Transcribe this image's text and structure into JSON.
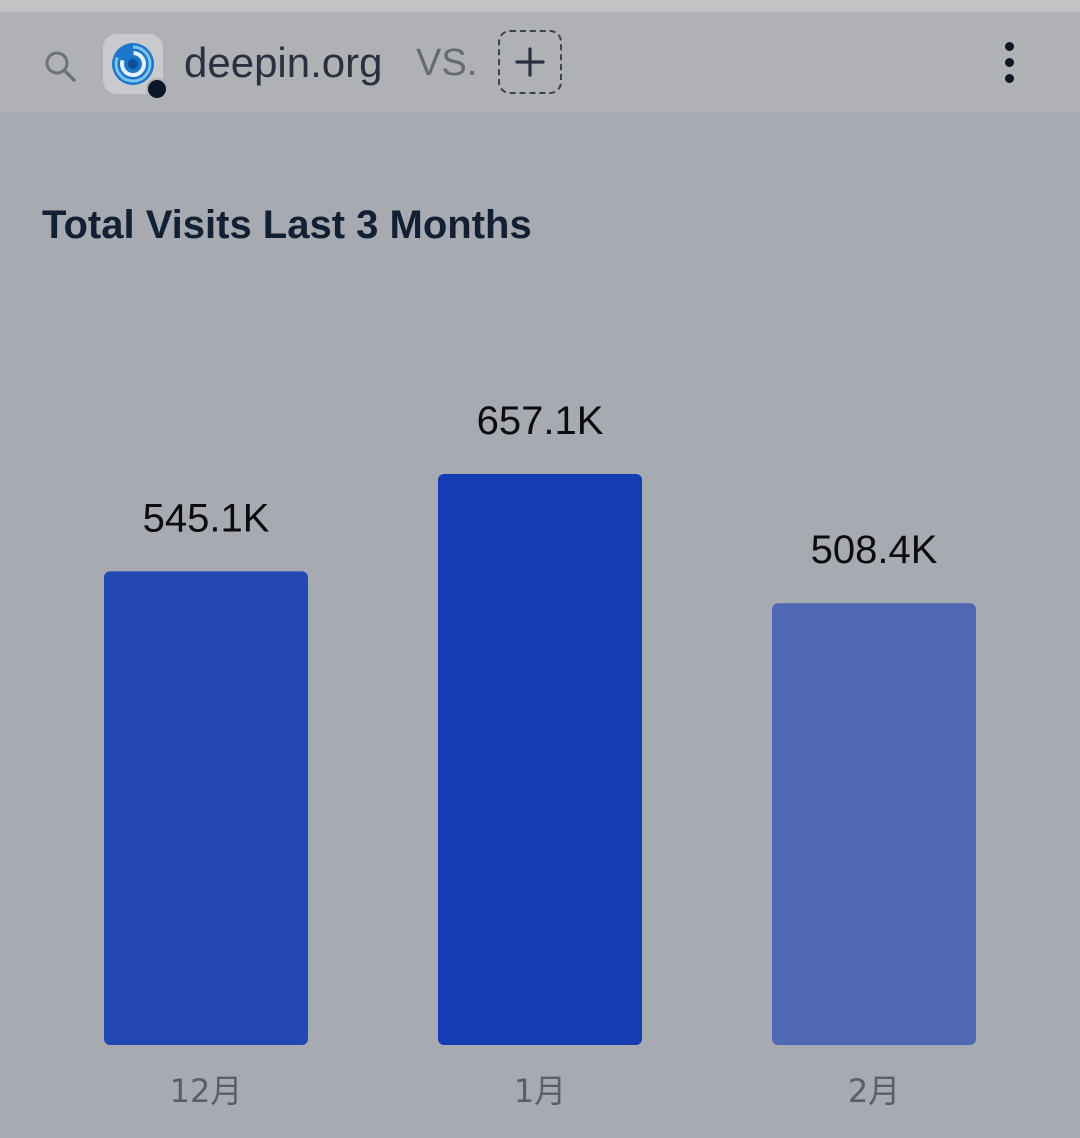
{
  "header": {
    "search_icon": "search-icon",
    "site_logo_icon": "deepin-logo-icon",
    "site_name": "deepin.org",
    "vs_label": "VS.",
    "add_icon": "plus-icon",
    "more_icon": "more-vertical-icon"
  },
  "colors": {
    "bar_1": "#2348b3",
    "bar_2": "#143db2",
    "bar_3": "#4e68b4",
    "value_text": "#0c0c10",
    "tick_text": "#5a5e66"
  },
  "chart_data": {
    "type": "bar",
    "title": "Total Visits Last 3 Months",
    "categories": [
      "12月",
      "1月",
      "2月"
    ],
    "values": [
      545100,
      657100,
      508400
    ],
    "value_labels": [
      "545.1K",
      "657.1K",
      "508.4K"
    ],
    "ylim": [
      0,
      657100
    ],
    "grid": false
  }
}
